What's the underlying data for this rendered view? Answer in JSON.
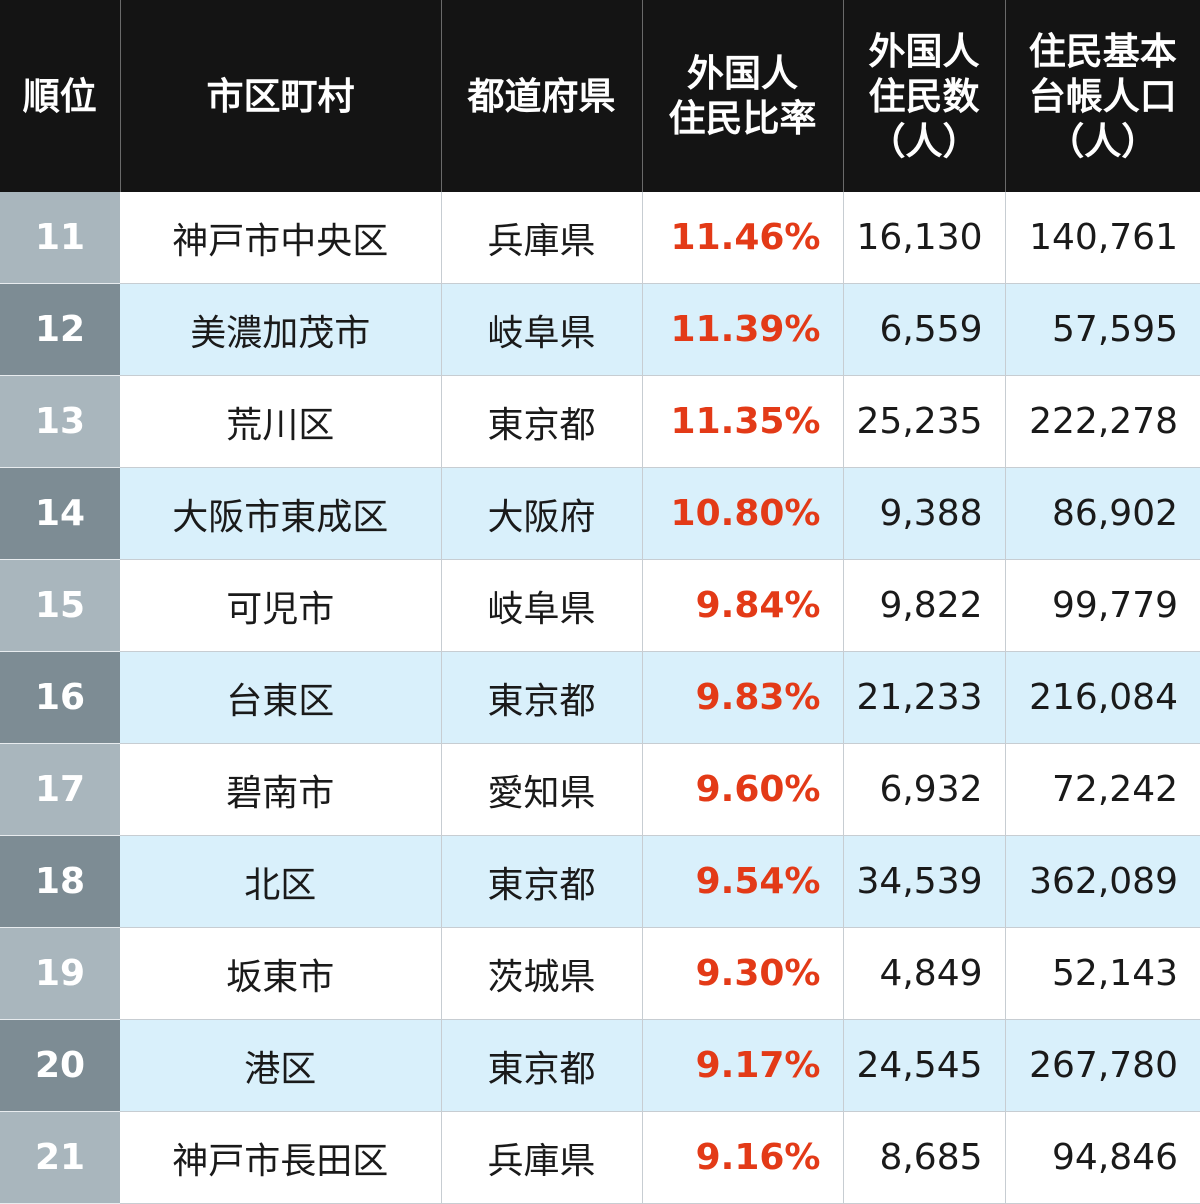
{
  "header": {
    "rank": "順位",
    "city": "市区町村",
    "prefecture": "都道府県",
    "ratio": "外国人\n住民比率",
    "foreign_residents": "外国人\n住民数\n（人）",
    "registered_population": "住民基本\n台帳人口\n（人）"
  },
  "colors": {
    "header_bg": "#141414",
    "ratio_text": "#e33a17",
    "stripe": "#d9f0fb",
    "rank_light": "#a9b6bd",
    "rank_dark": "#7d8c94"
  },
  "rows": [
    {
      "rank": "11",
      "city": "神戸市中央区",
      "prefecture": "兵庫県",
      "ratio": "11.46%",
      "foreign": "16,130",
      "population": "140,761"
    },
    {
      "rank": "12",
      "city": "美濃加茂市",
      "prefecture": "岐阜県",
      "ratio": "11.39%",
      "foreign": "6,559",
      "population": "57,595"
    },
    {
      "rank": "13",
      "city": "荒川区",
      "prefecture": "東京都",
      "ratio": "11.35%",
      "foreign": "25,235",
      "population": "222,278"
    },
    {
      "rank": "14",
      "city": "大阪市東成区",
      "prefecture": "大阪府",
      "ratio": "10.80%",
      "foreign": "9,388",
      "population": "86,902"
    },
    {
      "rank": "15",
      "city": "可児市",
      "prefecture": "岐阜県",
      "ratio": "9.84%",
      "foreign": "9,822",
      "population": "99,779"
    },
    {
      "rank": "16",
      "city": "台東区",
      "prefecture": "東京都",
      "ratio": "9.83%",
      "foreign": "21,233",
      "population": "216,084"
    },
    {
      "rank": "17",
      "city": "碧南市",
      "prefecture": "愛知県",
      "ratio": "9.60%",
      "foreign": "6,932",
      "population": "72,242"
    },
    {
      "rank": "18",
      "city": "北区",
      "prefecture": "東京都",
      "ratio": "9.54%",
      "foreign": "34,539",
      "population": "362,089"
    },
    {
      "rank": "19",
      "city": "坂東市",
      "prefecture": "茨城県",
      "ratio": "9.30%",
      "foreign": "4,849",
      "population": "52,143"
    },
    {
      "rank": "20",
      "city": "港区",
      "prefecture": "東京都",
      "ratio": "9.17%",
      "foreign": "24,545",
      "population": "267,780"
    },
    {
      "rank": "21",
      "city": "神戸市長田区",
      "prefecture": "兵庫県",
      "ratio": "9.16%",
      "foreign": "8,685",
      "population": "94,846"
    }
  ]
}
